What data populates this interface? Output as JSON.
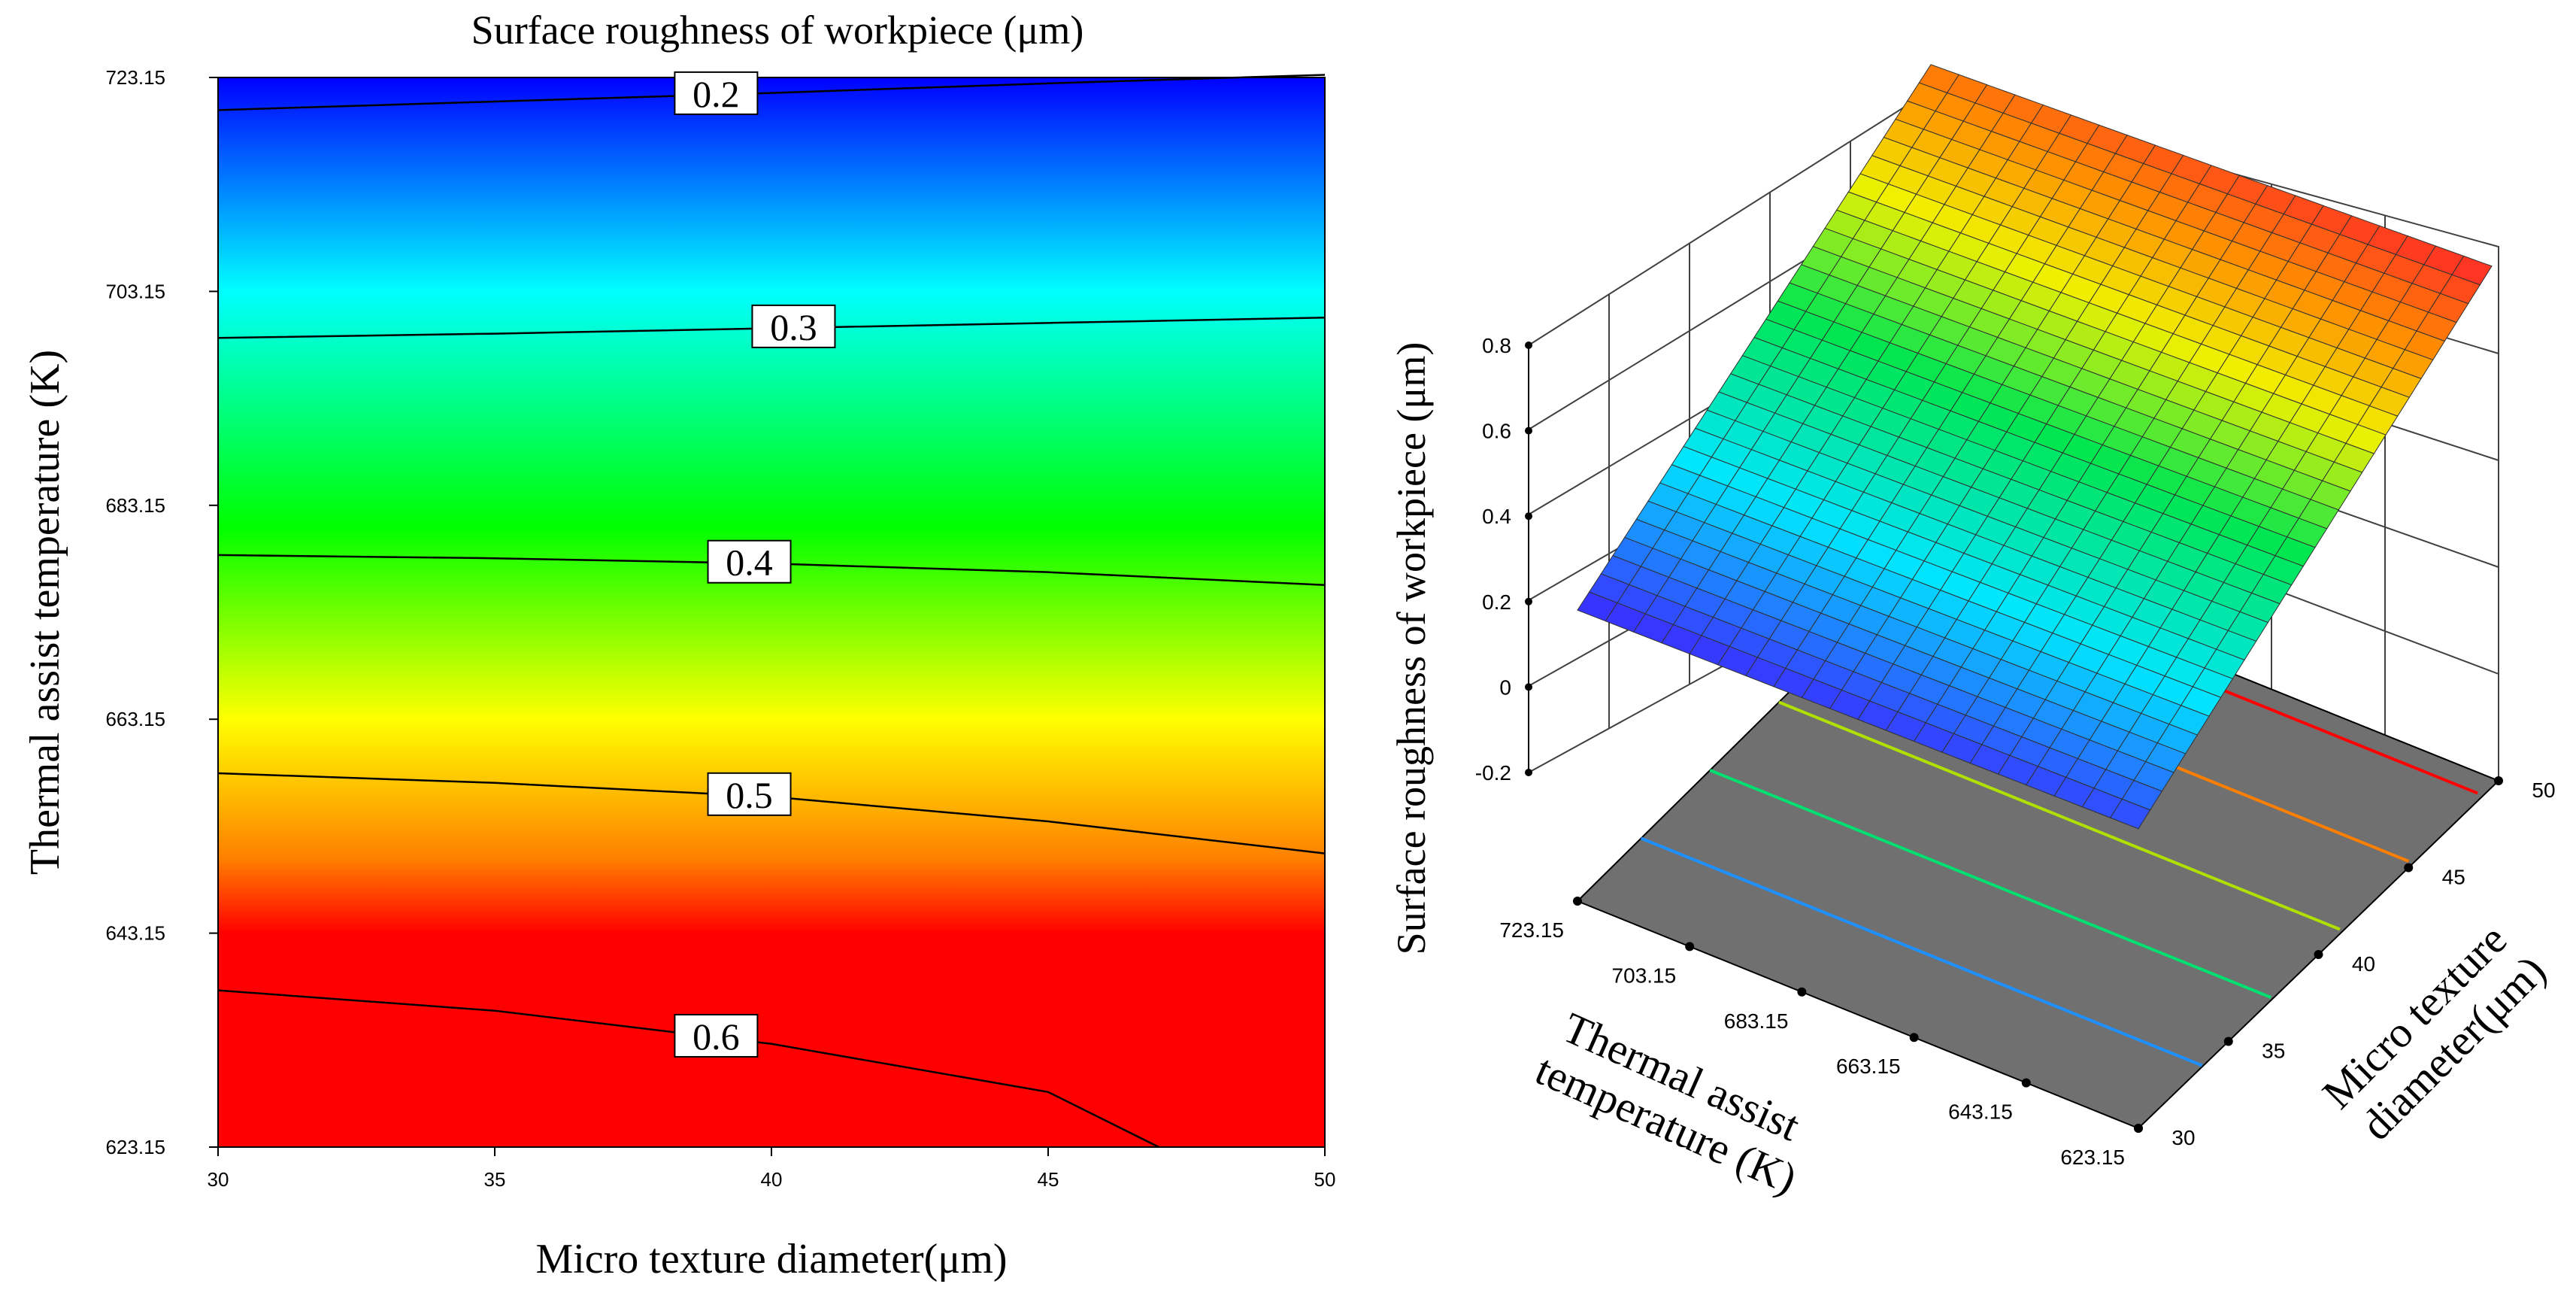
{
  "chart_data": [
    {
      "type": "contour",
      "title": "Surface roughness of workpiece (μm)",
      "xlabel": "Micro texture diameter(μm)",
      "ylabel": "Thermal assist temperature (K)",
      "xlim": [
        30,
        50
      ],
      "ylim": [
        623.15,
        723.15
      ],
      "x_ticks": [
        "30",
        "35",
        "40",
        "45",
        "50"
      ],
      "y_ticks": [
        "623.15",
        "643.15",
        "663.15",
        "683.15",
        "703.15",
        "723.15"
      ],
      "colormap": [
        "#0000ff",
        "#00ffff",
        "#00ff00",
        "#ffff00",
        "#ff8000",
        "#ff0000"
      ],
      "contours": [
        {
          "level": "0.2",
          "points": [
            [
              30,
              720.1
            ],
            [
              35,
              720.9
            ],
            [
              40,
              721.7
            ],
            [
              45,
              722.6
            ],
            [
              50,
              723.4
            ]
          ]
        },
        {
          "level": "0.3",
          "points": [
            [
              30,
              698.8
            ],
            [
              35,
              699.2
            ],
            [
              40,
              699.7
            ],
            [
              45,
              700.2
            ],
            [
              50,
              700.7
            ]
          ]
        },
        {
          "level": "0.4",
          "points": [
            [
              30,
              678.5
            ],
            [
              35,
              678.2
            ],
            [
              40,
              677.7
            ],
            [
              45,
              676.9
            ],
            [
              50,
              675.7
            ]
          ]
        },
        {
          "level": "0.5",
          "points": [
            [
              30,
              658.1
            ],
            [
              35,
              657.2
            ],
            [
              40,
              655.9
            ],
            [
              45,
              653.6
            ],
            [
              50,
              650.6
            ]
          ]
        },
        {
          "level": "0.6",
          "points": [
            [
              30,
              637.8
            ],
            [
              35,
              635.9
            ],
            [
              40,
              632.8
            ],
            [
              45,
              628.3
            ],
            [
              47,
              623.15
            ]
          ]
        }
      ]
    },
    {
      "type": "surface3d",
      "zlabel": "Surface roughness of workpiece (μm)",
      "xlabel": "Micro texture diameter(μm)",
      "ylabel": "Thermal assist temperature (K)",
      "x_ticks": [
        "30",
        "35",
        "40",
        "45",
        "50"
      ],
      "y_ticks": [
        "723.15",
        "703.15",
        "683.15",
        "663.15",
        "643.15",
        "623.15"
      ],
      "z_ticks": [
        "-0.2",
        "0",
        "0.2",
        "0.4",
        "0.6",
        "0.8"
      ],
      "zlim": [
        -0.2,
        0.8
      ],
      "xlim": [
        30,
        50
      ],
      "ylim": [
        623.15,
        723.15
      ],
      "corner_values": {
        "x30_y723": 0.18,
        "x50_y723": 0.2,
        "x30_y623": 0.64,
        "x50_y623": 0.7
      },
      "floor_color": "#707070",
      "floor_contour_colors": [
        "#1e90ff",
        "#00e070",
        "#b0e000",
        "#ff7f00",
        "#ff0000"
      ]
    }
  ]
}
